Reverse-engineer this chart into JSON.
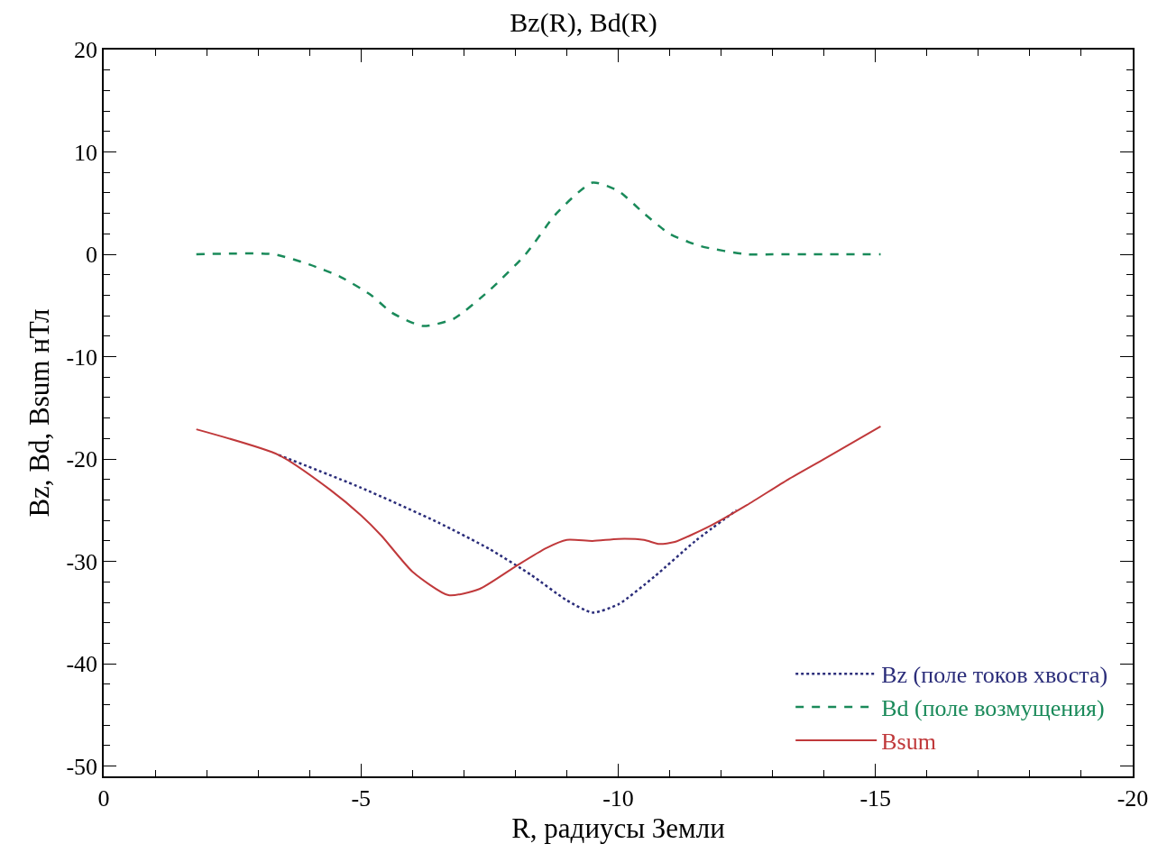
{
  "chart_data": {
    "type": "line",
    "title": "Bz(R), Bd(R)",
    "xlabel": "R, радиусы Земли",
    "ylabel": "Bz, Bd, Bsum нТл",
    "xlim": [
      0,
      -20
    ],
    "xticks": [
      0,
      -5,
      -10,
      -15,
      -20
    ],
    "ylim": [
      -51,
      20
    ],
    "yticks": [
      -50,
      -40,
      -30,
      -20,
      -10,
      0,
      10,
      20
    ],
    "grid": false,
    "legend": "bottom right",
    "marker": "none",
    "series": [
      {
        "name": "Bz (поле токов хвоста)",
        "color": "#2b2d7a",
        "line_style": "dotted",
        "x": [
          -3.4,
          -5,
          -6.5,
          -7.5,
          -8.3,
          -9,
          -9.5,
          -10,
          -10.7,
          -11.5,
          -12.3
        ],
        "values": [
          -19.6,
          -22.8,
          -26.2,
          -28.8,
          -31.3,
          -33.8,
          -35,
          -34.2,
          -31.5,
          -28,
          -25
        ]
      },
      {
        "name": "Bd (поле возмущения)",
        "color": "#1a8a5a",
        "line_style": "dashed",
        "x": [
          -1.8,
          -3.3,
          -4,
          -4.6,
          -5.2,
          -5.6,
          -6.2,
          -6.8,
          -7.5,
          -8.2,
          -8.8,
          -9.5,
          -10,
          -10.5,
          -11,
          -11.6,
          -12.5,
          -13,
          -15.1
        ],
        "values": [
          0,
          0,
          -1,
          -2.2,
          -4,
          -5.7,
          -7,
          -6.3,
          -3.5,
          0,
          4,
          7,
          6.2,
          4,
          2,
          0.8,
          0,
          0,
          0
        ]
      },
      {
        "name": "Bsum",
        "color": "#c0393b",
        "line_style": "solid",
        "x": [
          -1.8,
          -3.4,
          -4.4,
          -5,
          -5.4,
          -6,
          -6.7,
          -7.3,
          -8,
          -8.6,
          -9,
          -9.5,
          -10,
          -10.5,
          -10.8,
          -11.1,
          -11.8,
          -12.5,
          -13.3,
          -14,
          -15.1
        ],
        "values": [
          -17.1,
          -19.6,
          -23,
          -25.5,
          -27.5,
          -31,
          -33.3,
          -32.7,
          -30.5,
          -28.7,
          -27.9,
          -28,
          -27.8,
          -27.9,
          -28.3,
          -28.1,
          -26.5,
          -24.5,
          -22,
          -20,
          -16.8
        ]
      }
    ]
  }
}
